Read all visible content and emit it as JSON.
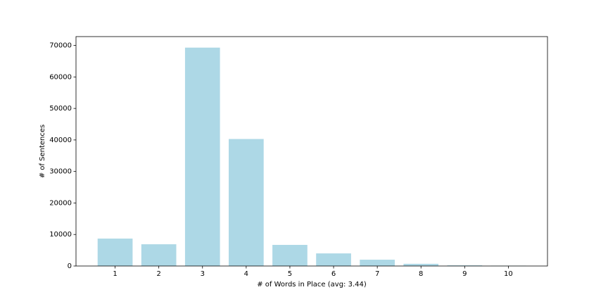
{
  "chart_data": {
    "type": "bar",
    "x_label": "# of Words in Place (avg: 3.44)",
    "y_label": "# of Sentences",
    "categories": [
      "1",
      "2",
      "3",
      "4",
      "5",
      "6",
      "7",
      "8",
      "9",
      "10"
    ],
    "values": [
      8700,
      6900,
      69300,
      40300,
      6700,
      4000,
      2000,
      700,
      200,
      100
    ],
    "color": "#add8e6",
    "ylim": [
      0,
      72800
    ],
    "yticks": [
      0,
      10000,
      20000,
      30000,
      40000,
      50000,
      60000,
      70000
    ],
    "grid": false
  }
}
